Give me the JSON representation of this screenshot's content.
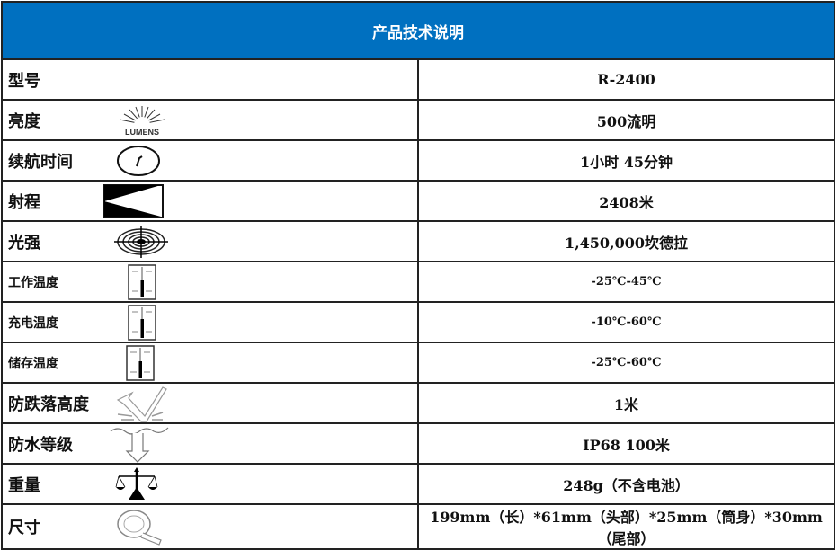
{
  "title": "产品技术说明",
  "rows": [
    {
      "label": "型号",
      "icon": "none",
      "value": "R-2400"
    },
    {
      "label": "亮度",
      "icon": "lumens-icon",
      "icon_text": "LUMENS",
      "value": "500流明"
    },
    {
      "label": "续航时间",
      "icon": "clock-icon",
      "value": "1小时 45分钟"
    },
    {
      "label": "射程",
      "icon": "beam-distance-icon",
      "value": "2408米"
    },
    {
      "label": "光强",
      "icon": "target-icon",
      "value": "1,450,000坎德拉"
    },
    {
      "label": "工作温度",
      "icon": "thermometer-icon",
      "value": "-25℃-45℃"
    },
    {
      "label": "充电温度",
      "icon": "thermometer-icon",
      "value": "-10℃-60℃"
    },
    {
      "label": "储存温度",
      "icon": "thermometer-icon",
      "value": "-25℃-60℃"
    },
    {
      "label": "防跌落高度",
      "icon": "drop-impact-icon",
      "value": "1米"
    },
    {
      "label": "防水等级",
      "icon": "waterproof-icon",
      "value": "IP68 100米"
    },
    {
      "label": "重量",
      "icon": "scale-icon",
      "value": "248g（不含电池）"
    },
    {
      "label": "尺寸",
      "icon": "tape-measure-icon",
      "value": "199mm（长）*61mm（头部）*25mm（筒身）*30mm（尾部）"
    }
  ]
}
